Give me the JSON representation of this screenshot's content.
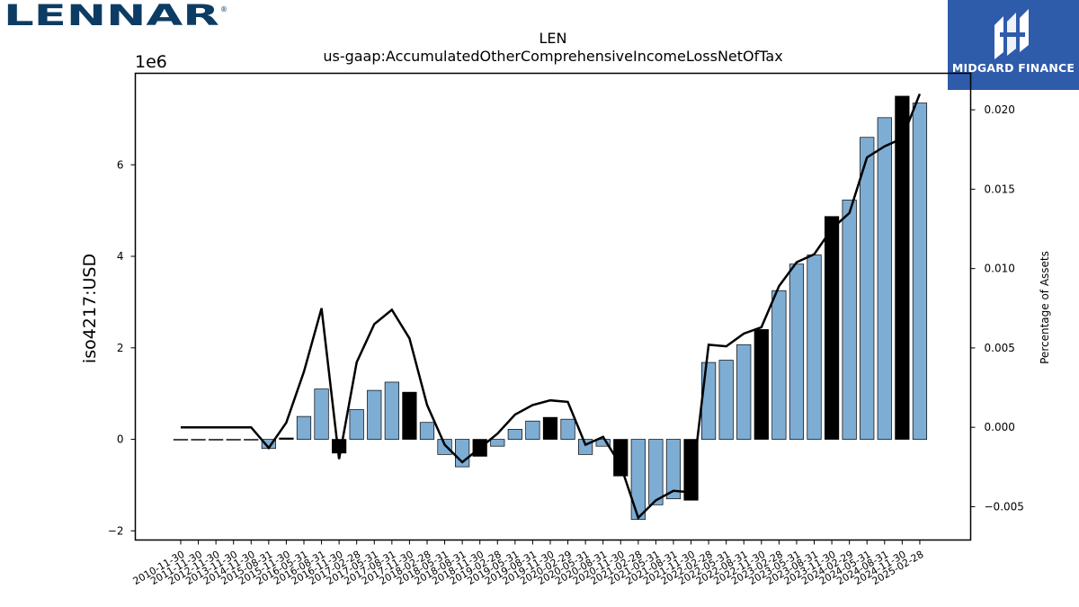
{
  "header": {
    "left_logo_text": "LENNAR",
    "right_logo_text": "MIDGARD FINANCE"
  },
  "chart_data": {
    "type": "bar",
    "title": "LEN",
    "subtitle": "us-gaap:AccumulatedOtherComprehensiveIncomeLossNetOfTax",
    "ylabel": "iso4217:USD",
    "y2label": "Percentage of Assets",
    "offset_label": "1e6",
    "ylim": [
      -2200000,
      8000000
    ],
    "y2lim": [
      -0.0071,
      0.0223
    ],
    "yticks": [
      -2000000,
      0,
      2000000,
      4000000,
      6000000
    ],
    "yticks_labels": [
      "−2",
      "0",
      "2",
      "4",
      "6"
    ],
    "y2ticks": [
      -0.005,
      0.0,
      0.005,
      0.01,
      0.015,
      0.02
    ],
    "y2ticks_labels": [
      "−0.005",
      "0.000",
      "0.005",
      "0.010",
      "0.015",
      "0.020"
    ],
    "colors": {
      "bar": "#7eadd4",
      "highlight": "#000000",
      "line": "#000000"
    },
    "categories": [
      "2010-11-30",
      "2011-11-30",
      "2012-11-30",
      "2013-11-30",
      "2014-11-30",
      "2015-08-31",
      "2015-11-30",
      "2016-05-31",
      "2016-08-31",
      "2016-11-30",
      "2017-02-28",
      "2017-05-31",
      "2017-08-31",
      "2017-11-30",
      "2018-02-28",
      "2018-05-31",
      "2018-08-31",
      "2018-11-30",
      "2019-02-28",
      "2019-05-31",
      "2019-08-31",
      "2019-11-30",
      "2020-02-29",
      "2020-05-31",
      "2020-08-31",
      "2020-11-30",
      "2021-02-28",
      "2021-05-31",
      "2021-08-31",
      "2021-11-30",
      "2022-02-28",
      "2022-05-31",
      "2022-08-31",
      "2022-11-30",
      "2023-02-28",
      "2023-05-31",
      "2023-08-31",
      "2023-11-30",
      "2024-02-29",
      "2024-05-31",
      "2024-08-31",
      "2024-11-30",
      "2025-02-28"
    ],
    "values": [
      0,
      0,
      0,
      0,
      0,
      -200000,
      30000,
      500000,
      1100000,
      -300000,
      650000,
      1070000,
      1250000,
      1030000,
      370000,
      -330000,
      -600000,
      -370000,
      -150000,
      220000,
      400000,
      480000,
      440000,
      -330000,
      -150000,
      -800000,
      -1750000,
      -1430000,
      -1300000,
      -1330000,
      1680000,
      1730000,
      2070000,
      2400000,
      3250000,
      3830000,
      4030000,
      4870000,
      5230000,
      6600000,
      7030000,
      7500000,
      7350000
    ],
    "highlight": [
      false,
      false,
      false,
      false,
      false,
      false,
      true,
      false,
      false,
      true,
      false,
      false,
      false,
      true,
      false,
      false,
      false,
      true,
      false,
      false,
      false,
      true,
      false,
      false,
      false,
      true,
      false,
      false,
      false,
      true,
      false,
      false,
      false,
      true,
      false,
      false,
      false,
      true,
      false,
      false,
      false,
      true,
      false
    ],
    "line_values": [
      0.0,
      0.0,
      0.0,
      0.0,
      0.0,
      -0.0013,
      0.0003,
      0.0035,
      0.0075,
      -0.002,
      0.0041,
      0.0065,
      0.0074,
      0.0056,
      0.0014,
      -0.0011,
      -0.0022,
      -0.0013,
      -0.0004,
      0.0008,
      0.0014,
      0.0017,
      0.0016,
      -0.0011,
      -0.0006,
      -0.0024,
      -0.0057,
      -0.0046,
      -0.004,
      -0.0041,
      0.0052,
      0.0051,
      0.0059,
      0.0063,
      0.0089,
      0.0104,
      0.0109,
      0.0125,
      0.0135,
      0.017,
      0.0177,
      0.0182,
      0.021
    ]
  }
}
